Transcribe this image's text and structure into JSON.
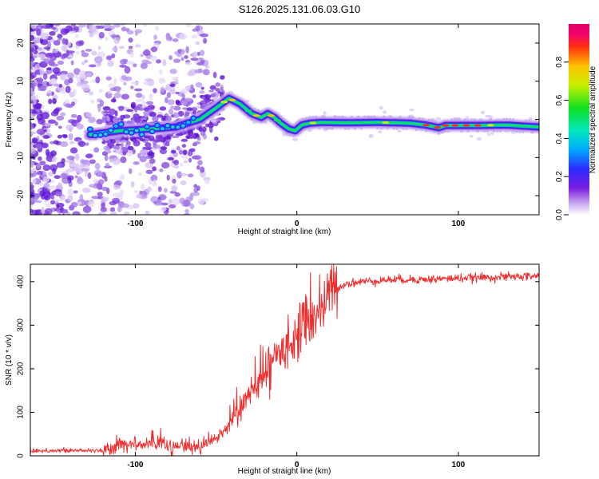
{
  "title": "S126.2025.131.06.03.G10",
  "chart_data": [
    {
      "type": "heatmap",
      "xlabel": "Height of straight line (km)",
      "ylabel": "Frequency (Hz)",
      "xlim": [
        -165,
        150
      ],
      "ylim": [
        -25,
        25
      ],
      "xticks": [
        -100,
        0,
        100
      ],
      "yticks": [
        -20,
        -10,
        0,
        10,
        20
      ],
      "grid": false,
      "track": [
        [
          -128,
          -4
        ],
        [
          -110,
          -3
        ],
        [
          -90,
          -2.5
        ],
        [
          -75,
          -2
        ],
        [
          -60,
          0
        ],
        [
          -50,
          3
        ],
        [
          -42,
          5.5
        ],
        [
          -35,
          4
        ],
        [
          -28,
          1.5
        ],
        [
          -22,
          0.5
        ],
        [
          -18,
          1.5
        ],
        [
          -14,
          0.5
        ],
        [
          -10,
          -1
        ],
        [
          -5,
          -2.5
        ],
        [
          -1,
          -3
        ],
        [
          3,
          -1.5
        ],
        [
          8,
          -1
        ],
        [
          15,
          -0.8
        ],
        [
          30,
          -0.9
        ],
        [
          50,
          -0.8
        ],
        [
          70,
          -1
        ],
        [
          80,
          -1.5
        ],
        [
          88,
          -2.2
        ],
        [
          92,
          -1.6
        ],
        [
          110,
          -1.6
        ],
        [
          130,
          -1.5
        ],
        [
          150,
          -2
        ]
      ],
      "colorbar": {
        "label": "Normalized spectral amplitude",
        "ticks": [
          0.0,
          0.2,
          0.4,
          0.6,
          0.8
        ],
        "range": [
          0,
          1
        ]
      }
    },
    {
      "type": "line",
      "xlabel": "Height of straight line (km)",
      "ylabel": "SNR (10 * v/v)",
      "xlim": [
        -165,
        150
      ],
      "ylim": [
        0,
        440
      ],
      "xticks": [
        -100,
        0,
        100
      ],
      "yticks": [
        0,
        100,
        200,
        300,
        400
      ],
      "grid": false,
      "series_color": "#ef2f2f",
      "trend": [
        [
          -165,
          12
        ],
        [
          -130,
          12
        ],
        [
          -115,
          14
        ],
        [
          -105,
          28
        ],
        [
          -95,
          30
        ],
        [
          -85,
          25
        ],
        [
          -75,
          20
        ],
        [
          -65,
          22
        ],
        [
          -55,
          30
        ],
        [
          -45,
          55
        ],
        [
          -35,
          110
        ],
        [
          -25,
          160
        ],
        [
          -15,
          220
        ],
        [
          -5,
          260
        ],
        [
          0,
          280
        ],
        [
          5,
          300
        ],
        [
          10,
          320
        ],
        [
          15,
          340
        ],
        [
          20,
          370
        ],
        [
          25,
          385
        ],
        [
          30,
          395
        ],
        [
          40,
          400
        ],
        [
          60,
          405
        ],
        [
          80,
          405
        ],
        [
          100,
          408
        ],
        [
          120,
          410
        ],
        [
          150,
          413
        ]
      ]
    }
  ]
}
